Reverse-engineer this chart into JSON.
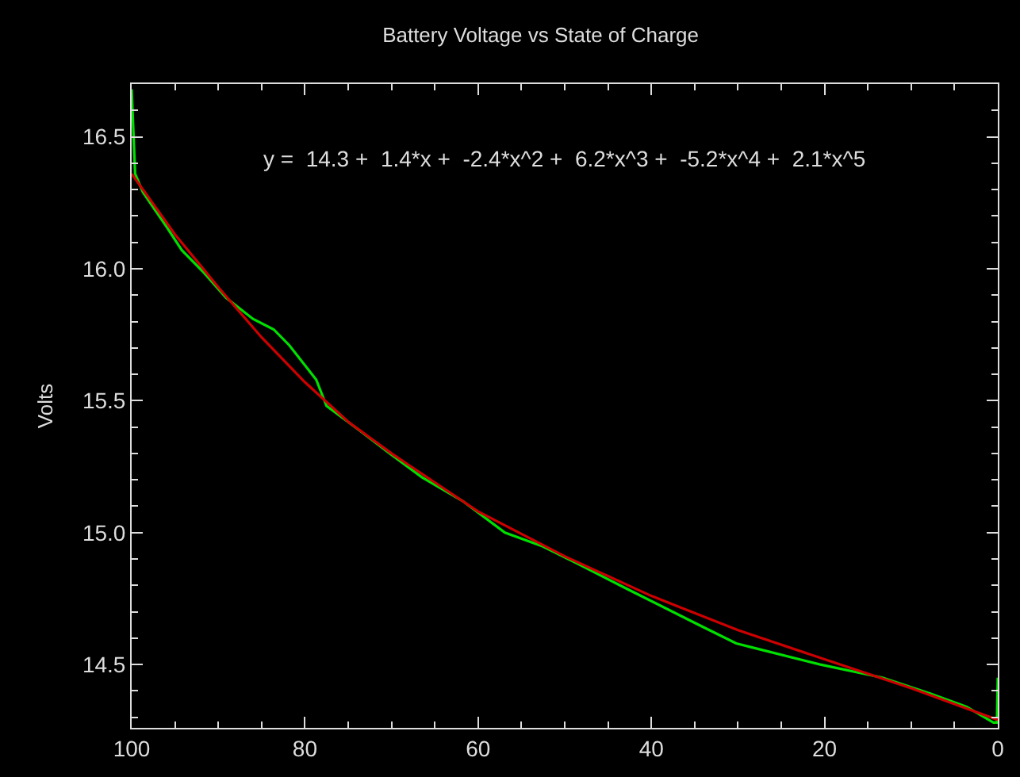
{
  "chart_data": {
    "type": "line",
    "title": "Battery Voltage vs State of Charge",
    "ylabel": "Volts",
    "annotations": [
      "y =  14.3 +  1.4*x +  -2.4*x^2 +  6.2*x^3 +  -5.2*x^4 +  2.1*x^5"
    ],
    "xlim": [
      100,
      0
    ],
    "xticks": [
      100,
      80,
      60,
      40,
      20,
      0
    ],
    "ylim": [
      14.26,
      16.7
    ],
    "yticks": [
      14.5,
      {
        "value": 15,
        "label": "15.0"
      },
      15.5,
      {
        "value": 16,
        "label": "16.0"
      },
      16.5
    ],
    "grid": false,
    "marker": "none",
    "line_style": "solid",
    "series": [
      {
        "color": "#00e000",
        "x": [
          100,
          99.6,
          98.7,
          96,
          94.2,
          91.8,
          89.1,
          86,
          83.6,
          81.8,
          78.7,
          77.5,
          73.8,
          70.2,
          66.5,
          61.8,
          56.9,
          52.7,
          48.4,
          42.4,
          34.5,
          30.2,
          27.8,
          20.5,
          13.3,
          7.8,
          3.6,
          0.5,
          0.1,
          0
        ],
        "values": [
          16.68,
          16.36,
          16.29,
          16.16,
          16.07,
          15.99,
          15.89,
          15.81,
          15.77,
          15.71,
          15.58,
          15.48,
          15.39,
          15.3,
          15.21,
          15.12,
          15.0,
          14.95,
          14.88,
          14.78,
          14.65,
          14.58,
          14.56,
          14.5,
          14.45,
          14.39,
          14.34,
          14.28,
          14.28,
          14.45
        ]
      },
      {
        "color": "#cc0000",
        "x": [
          100,
          95,
          90,
          85,
          80,
          75,
          70,
          65,
          60,
          50,
          40,
          30,
          20,
          10,
          0
        ],
        "values": [
          16.36,
          16.13,
          15.93,
          15.74,
          15.57,
          15.42,
          15.3,
          15.19,
          15.08,
          14.91,
          14.76,
          14.63,
          14.52,
          14.41,
          14.29
        ]
      }
    ]
  }
}
